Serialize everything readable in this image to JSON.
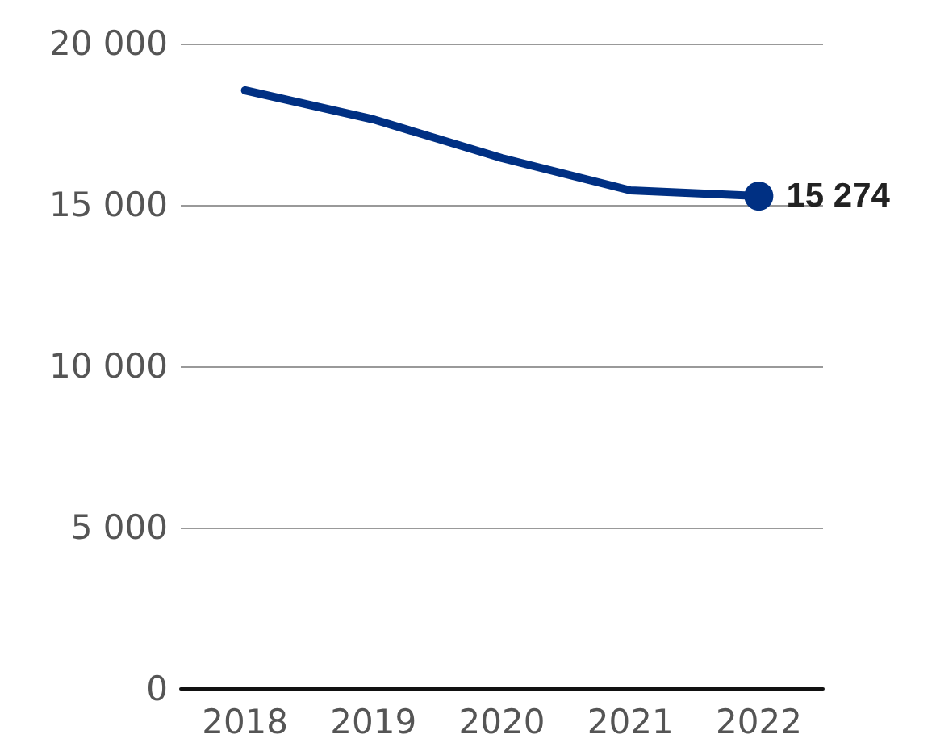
{
  "chart_data": {
    "type": "line",
    "categories": [
      "2018",
      "2019",
      "2020",
      "2021",
      "2022"
    ],
    "series": [
      {
        "color": "#003083",
        "values": [
          18550,
          17650,
          16450,
          15450,
          15274
        ],
        "value_labels": [
          null,
          null,
          null,
          null,
          "15 274"
        ]
      }
    ],
    "ylim": [
      0,
      20000
    ],
    "yticks": [
      {
        "value": 0,
        "label": "0"
      },
      {
        "value": 5000,
        "label": "5 000"
      },
      {
        "value": 10000,
        "label": "10 000"
      },
      {
        "value": 15000,
        "label": "15 000"
      },
      {
        "value": 20000,
        "label": "20 000"
      }
    ],
    "grid": "y"
  }
}
